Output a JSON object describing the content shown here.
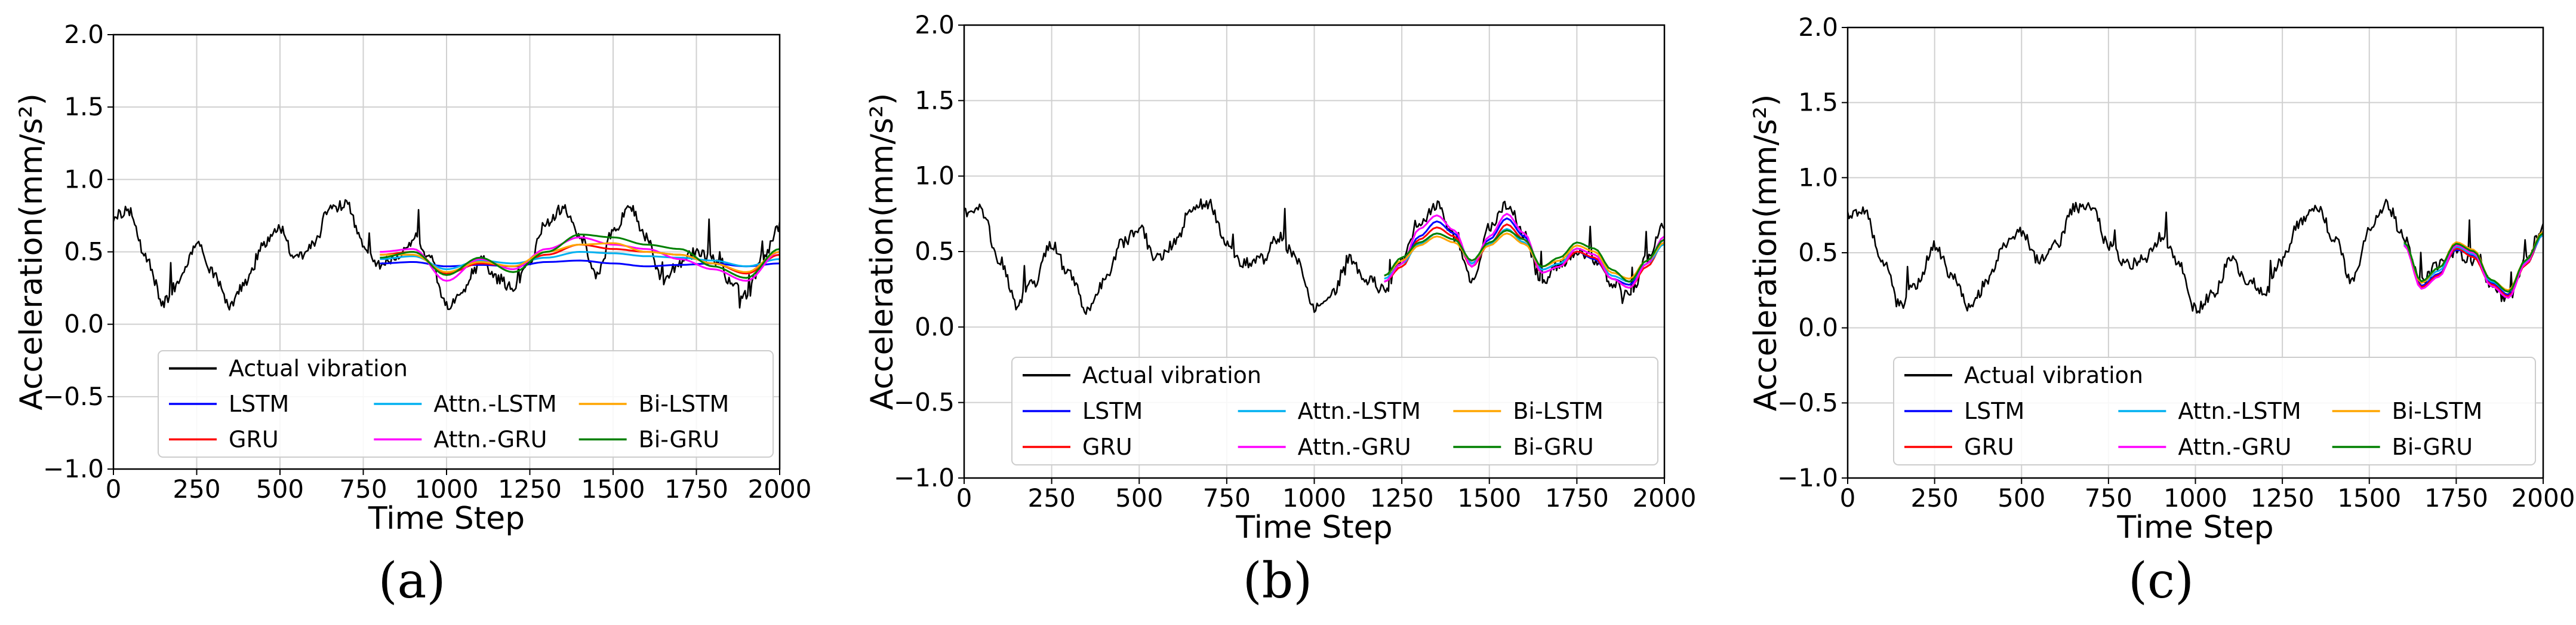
{
  "colors": {
    "actual": "#000000",
    "LSTM": "#0000ff",
    "GRU": "#ff0000",
    "Attn.-LSTM": "#00b0f0",
    "Attn.-GRU": "#ff00ff",
    "Bi-LSTM": "#ffa500",
    "Bi-GRU": "#008000",
    "grid": "#d0d0d0"
  },
  "chart_data": [
    {
      "type": "line",
      "panel_label": "(a)",
      "xlabel": "Time Step",
      "ylabel": "Acceleration(mm/s²)",
      "xlim": [
        0,
        2000
      ],
      "ylim": [
        -1.0,
        2.0
      ],
      "x_ticks": [
        "0",
        "250",
        "500",
        "750",
        "1000",
        "1250",
        "1500",
        "1750",
        "2000"
      ],
      "y_ticks": [
        "2.0",
        "1.5",
        "1.0",
        "0.5",
        "0.0",
        "−0.5",
        "−1.0"
      ],
      "grid": true,
      "legend": [
        "Actual vibration",
        "LSTM",
        "GRU",
        "Attn.-LSTM",
        "Attn.-GRU",
        "Bi-LSTM",
        "Bi-GRU"
      ],
      "legend_location": "lower-center",
      "prediction_start": 800,
      "series": [
        {
          "name": "Actual vibration",
          "x": [
            0,
            50,
            100,
            150,
            200,
            250,
            300,
            350,
            400,
            450,
            500,
            550,
            600,
            650,
            700,
            750,
            800,
            850,
            900,
            950,
            1000,
            1050,
            1100,
            1150,
            1200,
            1250,
            1300,
            1350,
            1400,
            1450,
            1500,
            1550,
            1600,
            1650,
            1700,
            1750,
            1800,
            1850,
            1900,
            1950,
            2000
          ],
          "values": [
            0.75,
            0.78,
            0.45,
            0.15,
            0.3,
            0.55,
            0.35,
            0.12,
            0.3,
            0.55,
            0.65,
            0.45,
            0.55,
            0.8,
            0.82,
            0.55,
            0.42,
            0.45,
            0.6,
            0.45,
            0.12,
            0.22,
            0.45,
            0.32,
            0.25,
            0.45,
            0.7,
            0.8,
            0.6,
            0.32,
            0.65,
            0.82,
            0.6,
            0.3,
            0.42,
            0.5,
            0.45,
            0.3,
            0.2,
            0.45,
            0.68
          ]
        },
        {
          "name": "LSTM",
          "x": [
            800,
            900,
            1000,
            1100,
            1200,
            1300,
            1400,
            1500,
            1600,
            1700,
            1800,
            1900,
            2000
          ],
          "values": [
            0.42,
            0.43,
            0.4,
            0.41,
            0.4,
            0.43,
            0.44,
            0.42,
            0.4,
            0.41,
            0.42,
            0.4,
            0.42
          ]
        },
        {
          "name": "GRU",
          "x": [
            800,
            900,
            1000,
            1100,
            1200,
            1300,
            1400,
            1500,
            1600,
            1700,
            1800,
            1900,
            2000
          ],
          "values": [
            0.48,
            0.5,
            0.35,
            0.42,
            0.4,
            0.48,
            0.55,
            0.52,
            0.5,
            0.48,
            0.42,
            0.35,
            0.48
          ]
        },
        {
          "name": "Attn.-LSTM",
          "x": [
            800,
            900,
            1000,
            1100,
            1200,
            1300,
            1400,
            1500,
            1600,
            1700,
            1800,
            1900,
            2000
          ],
          "values": [
            0.45,
            0.47,
            0.38,
            0.44,
            0.42,
            0.46,
            0.5,
            0.49,
            0.47,
            0.46,
            0.44,
            0.4,
            0.45
          ]
        },
        {
          "name": "Attn.-GRU",
          "x": [
            800,
            900,
            1000,
            1100,
            1200,
            1300,
            1400,
            1500,
            1600,
            1700,
            1800,
            1900,
            2000
          ],
          "values": [
            0.5,
            0.52,
            0.3,
            0.45,
            0.38,
            0.52,
            0.6,
            0.55,
            0.52,
            0.45,
            0.38,
            0.3,
            0.5
          ]
        },
        {
          "name": "Bi-LSTM",
          "x": [
            800,
            900,
            1000,
            1100,
            1200,
            1300,
            1400,
            1500,
            1600,
            1700,
            1800,
            1900,
            2000
          ],
          "values": [
            0.48,
            0.48,
            0.36,
            0.43,
            0.4,
            0.5,
            0.55,
            0.56,
            0.5,
            0.48,
            0.42,
            0.36,
            0.5
          ]
        },
        {
          "name": "Bi-GRU",
          "x": [
            800,
            900,
            1000,
            1100,
            1200,
            1300,
            1400,
            1500,
            1600,
            1700,
            1800,
            1900,
            2000
          ],
          "values": [
            0.46,
            0.5,
            0.34,
            0.46,
            0.36,
            0.5,
            0.62,
            0.6,
            0.55,
            0.52,
            0.4,
            0.32,
            0.52
          ]
        }
      ]
    },
    {
      "type": "line",
      "panel_label": "(b)",
      "xlabel": "Time Step",
      "ylabel": "Acceleration(mm/s²)",
      "xlim": [
        0,
        2000
      ],
      "ylim": [
        -1.0,
        2.0
      ],
      "x_ticks": [
        "0",
        "250",
        "500",
        "750",
        "1000",
        "1250",
        "1500",
        "1750",
        "2000"
      ],
      "y_ticks": [
        "2.0",
        "1.5",
        "1.0",
        "0.5",
        "0.0",
        "−0.5",
        "−1.0"
      ],
      "grid": true,
      "legend": [
        "Actual vibration",
        "LSTM",
        "GRU",
        "Attn.-LSTM",
        "Attn.-GRU",
        "Bi-LSTM",
        "Bi-GRU"
      ],
      "legend_location": "lower-center",
      "prediction_start": 1200,
      "series": [
        {
          "name": "Actual vibration",
          "x": [
            0,
            50,
            100,
            150,
            200,
            250,
            300,
            350,
            400,
            450,
            500,
            550,
            600,
            650,
            700,
            750,
            800,
            850,
            900,
            950,
            1000,
            1050,
            1100,
            1150,
            1200,
            1250,
            1300,
            1350,
            1400,
            1450,
            1500,
            1550,
            1600,
            1650,
            1700,
            1750,
            1800,
            1850,
            1900,
            1950,
            2000
          ],
          "values": [
            0.75,
            0.78,
            0.45,
            0.15,
            0.3,
            0.55,
            0.35,
            0.12,
            0.3,
            0.55,
            0.65,
            0.45,
            0.55,
            0.8,
            0.82,
            0.55,
            0.42,
            0.45,
            0.6,
            0.45,
            0.12,
            0.22,
            0.45,
            0.32,
            0.25,
            0.45,
            0.7,
            0.8,
            0.6,
            0.32,
            0.65,
            0.82,
            0.6,
            0.3,
            0.42,
            0.5,
            0.45,
            0.3,
            0.2,
            0.45,
            0.68
          ]
        },
        {
          "name": "LSTM",
          "x": [
            1200,
            1250,
            1300,
            1350,
            1400,
            1450,
            1500,
            1550,
            1600,
            1650,
            1700,
            1750,
            1800,
            1850,
            1900,
            1950,
            2000
          ],
          "values": [
            0.3,
            0.42,
            0.6,
            0.7,
            0.62,
            0.42,
            0.58,
            0.72,
            0.6,
            0.38,
            0.42,
            0.5,
            0.45,
            0.32,
            0.28,
            0.42,
            0.58
          ]
        },
        {
          "name": "GRU",
          "x": [
            1200,
            1250,
            1300,
            1350,
            1400,
            1450,
            1500,
            1550,
            1600,
            1650,
            1700,
            1750,
            1800,
            1850,
            1900,
            1950,
            2000
          ],
          "values": [
            0.3,
            0.4,
            0.58,
            0.66,
            0.6,
            0.4,
            0.55,
            0.68,
            0.58,
            0.36,
            0.4,
            0.5,
            0.46,
            0.32,
            0.26,
            0.4,
            0.56
          ]
        },
        {
          "name": "Attn.-LSTM",
          "x": [
            1200,
            1250,
            1300,
            1350,
            1400,
            1450,
            1500,
            1550,
            1600,
            1650,
            1700,
            1750,
            1800,
            1850,
            1900,
            1950,
            2000
          ],
          "values": [
            0.32,
            0.42,
            0.55,
            0.62,
            0.58,
            0.42,
            0.55,
            0.65,
            0.56,
            0.38,
            0.42,
            0.52,
            0.48,
            0.34,
            0.3,
            0.42,
            0.55
          ]
        },
        {
          "name": "Attn.-GRU",
          "x": [
            1200,
            1250,
            1300,
            1350,
            1400,
            1450,
            1500,
            1550,
            1600,
            1650,
            1700,
            1750,
            1800,
            1850,
            1900,
            1950,
            2000
          ],
          "values": [
            0.3,
            0.42,
            0.65,
            0.74,
            0.64,
            0.4,
            0.6,
            0.75,
            0.62,
            0.36,
            0.4,
            0.52,
            0.48,
            0.32,
            0.26,
            0.42,
            0.6
          ]
        },
        {
          "name": "Bi-LSTM",
          "x": [
            1200,
            1250,
            1300,
            1350,
            1400,
            1450,
            1500,
            1550,
            1600,
            1650,
            1700,
            1750,
            1800,
            1850,
            1900,
            1950,
            2000
          ],
          "values": [
            0.34,
            0.44,
            0.54,
            0.6,
            0.56,
            0.44,
            0.54,
            0.62,
            0.55,
            0.4,
            0.44,
            0.54,
            0.5,
            0.36,
            0.32,
            0.44,
            0.56
          ]
        },
        {
          "name": "Bi-GRU",
          "x": [
            1200,
            1250,
            1300,
            1350,
            1400,
            1450,
            1500,
            1550,
            1600,
            1650,
            1700,
            1750,
            1800,
            1850,
            1900,
            1950,
            2000
          ],
          "values": [
            0.34,
            0.46,
            0.56,
            0.62,
            0.58,
            0.44,
            0.56,
            0.64,
            0.58,
            0.4,
            0.46,
            0.56,
            0.52,
            0.38,
            0.3,
            0.44,
            0.58
          ]
        }
      ]
    },
    {
      "type": "line",
      "panel_label": "(c)",
      "xlabel": "Time Step",
      "ylabel": "Acceleration(mm/s²)",
      "xlim": [
        0,
        2000
      ],
      "ylim": [
        -1.0,
        2.0
      ],
      "x_ticks": [
        "0",
        "250",
        "500",
        "750",
        "1000",
        "1250",
        "1500",
        "1750",
        "2000"
      ],
      "y_ticks": [
        "2.0",
        "1.5",
        "1.0",
        "0.5",
        "0.0",
        "−0.5",
        "−1.0"
      ],
      "grid": true,
      "legend": [
        "Actual vibration",
        "LSTM",
        "GRU",
        "Attn.-LSTM",
        "Attn.-GRU",
        "Bi-LSTM",
        "Bi-GRU"
      ],
      "legend_location": "lower-center",
      "prediction_start": 1600,
      "series": [
        {
          "name": "Actual vibration",
          "x": [
            0,
            50,
            100,
            150,
            200,
            250,
            300,
            350,
            400,
            450,
            500,
            550,
            600,
            650,
            700,
            750,
            800,
            850,
            900,
            950,
            1000,
            1050,
            1100,
            1150,
            1200,
            1250,
            1300,
            1350,
            1400,
            1450,
            1500,
            1550,
            1600,
            1650,
            1700,
            1750,
            1800,
            1850,
            1900,
            1950,
            2000
          ],
          "values": [
            0.75,
            0.78,
            0.45,
            0.15,
            0.3,
            0.55,
            0.35,
            0.12,
            0.3,
            0.55,
            0.65,
            0.45,
            0.55,
            0.8,
            0.82,
            0.55,
            0.42,
            0.45,
            0.6,
            0.45,
            0.12,
            0.22,
            0.45,
            0.32,
            0.25,
            0.45,
            0.7,
            0.8,
            0.6,
            0.32,
            0.65,
            0.82,
            0.6,
            0.3,
            0.42,
            0.5,
            0.45,
            0.3,
            0.2,
            0.45,
            0.68
          ]
        },
        {
          "name": "LSTM",
          "x": [
            1600,
            1650,
            1700,
            1750,
            1800,
            1850,
            1900,
            1950,
            2000
          ],
          "values": [
            0.55,
            0.28,
            0.36,
            0.52,
            0.48,
            0.3,
            0.22,
            0.42,
            0.62
          ]
        },
        {
          "name": "GRU",
          "x": [
            1600,
            1650,
            1700,
            1750,
            1800,
            1850,
            1900,
            1950,
            2000
          ],
          "values": [
            0.56,
            0.27,
            0.35,
            0.53,
            0.47,
            0.29,
            0.21,
            0.42,
            0.63
          ]
        },
        {
          "name": "Attn.-LSTM",
          "x": [
            1600,
            1650,
            1700,
            1750,
            1800,
            1850,
            1900,
            1950,
            2000
          ],
          "values": [
            0.56,
            0.3,
            0.38,
            0.54,
            0.49,
            0.31,
            0.24,
            0.44,
            0.62
          ]
        },
        {
          "name": "Attn.-GRU",
          "x": [
            1600,
            1650,
            1700,
            1750,
            1800,
            1850,
            1900,
            1950,
            2000
          ],
          "values": [
            0.55,
            0.26,
            0.34,
            0.55,
            0.5,
            0.28,
            0.2,
            0.43,
            0.64
          ]
        },
        {
          "name": "Bi-LSTM",
          "x": [
            1600,
            1650,
            1700,
            1750,
            1800,
            1850,
            1900,
            1950,
            2000
          ],
          "values": [
            0.57,
            0.3,
            0.4,
            0.57,
            0.52,
            0.32,
            0.25,
            0.45,
            0.64
          ]
        },
        {
          "name": "Bi-GRU",
          "x": [
            1600,
            1650,
            1700,
            1750,
            1800,
            1850,
            1900,
            1950,
            2000
          ],
          "values": [
            0.57,
            0.31,
            0.4,
            0.56,
            0.51,
            0.32,
            0.24,
            0.45,
            0.63
          ]
        }
      ]
    }
  ]
}
